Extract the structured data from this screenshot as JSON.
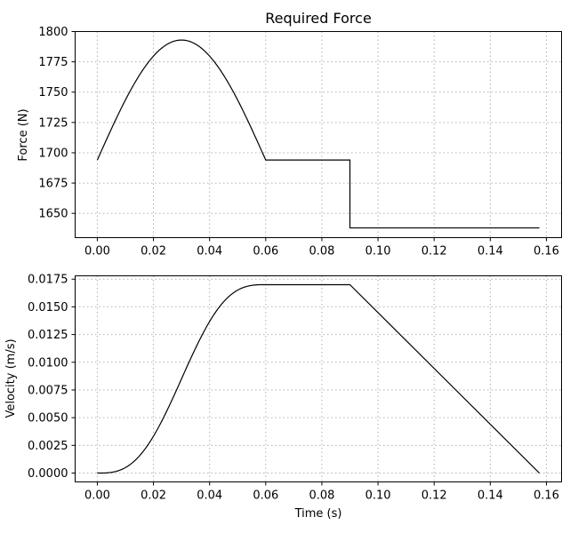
{
  "chart_data": [
    {
      "type": "line",
      "title": "Required Force",
      "xlabel": "",
      "ylabel": "Force (N)",
      "xlim": [
        -0.0079,
        0.1654
      ],
      "ylim": [
        1630,
        1800
      ],
      "x_ticks": [
        "0.00",
        "0.02",
        "0.04",
        "0.06",
        "0.08",
        "0.10",
        "0.12",
        "0.14",
        "0.16"
      ],
      "y_ticks": [
        "1800",
        "1775",
        "1750",
        "1725",
        "1700",
        "1675",
        "1650"
      ],
      "grid": true,
      "series": [
        {
          "color": "#000000",
          "x": [
            0.0,
            0.005,
            0.01,
            0.015,
            0.02,
            0.025,
            0.03,
            0.035,
            0.04,
            0.045,
            0.05,
            0.055,
            0.06,
            0.09,
            0.09,
            0.1575
          ],
          "y": [
            1694,
            1722,
            1748,
            1770,
            1785,
            1792,
            1793,
            1790,
            1780,
            1764,
            1742,
            1718,
            1694,
            1694,
            1638,
            1638
          ]
        }
      ]
    },
    {
      "type": "line",
      "title": "",
      "xlabel": "Time (s)",
      "ylabel": "Velocity (m/s)",
      "xlim": [
        -0.0079,
        0.1654
      ],
      "ylim": [
        -0.0008,
        0.0178
      ],
      "x_ticks": [
        "0.00",
        "0.02",
        "0.04",
        "0.06",
        "0.08",
        "0.10",
        "0.12",
        "0.14",
        "0.16"
      ],
      "y_ticks": [
        "0.0175",
        "0.0150",
        "0.0125",
        "0.0100",
        "0.0075",
        "0.0050",
        "0.0025",
        "0.0000"
      ],
      "grid": true,
      "series": [
        {
          "color": "#000000",
          "x": [
            0.0,
            0.005,
            0.01,
            0.015,
            0.02,
            0.025,
            0.03,
            0.035,
            0.04,
            0.045,
            0.05,
            0.055,
            0.06,
            0.09,
            0.1575
          ],
          "y": [
            0.0,
            0.0003,
            0.0012,
            0.0025,
            0.0044,
            0.0063,
            0.0085,
            0.0107,
            0.0126,
            0.0144,
            0.0158,
            0.0167,
            0.017,
            0.017,
            0.0
          ]
        }
      ]
    }
  ]
}
